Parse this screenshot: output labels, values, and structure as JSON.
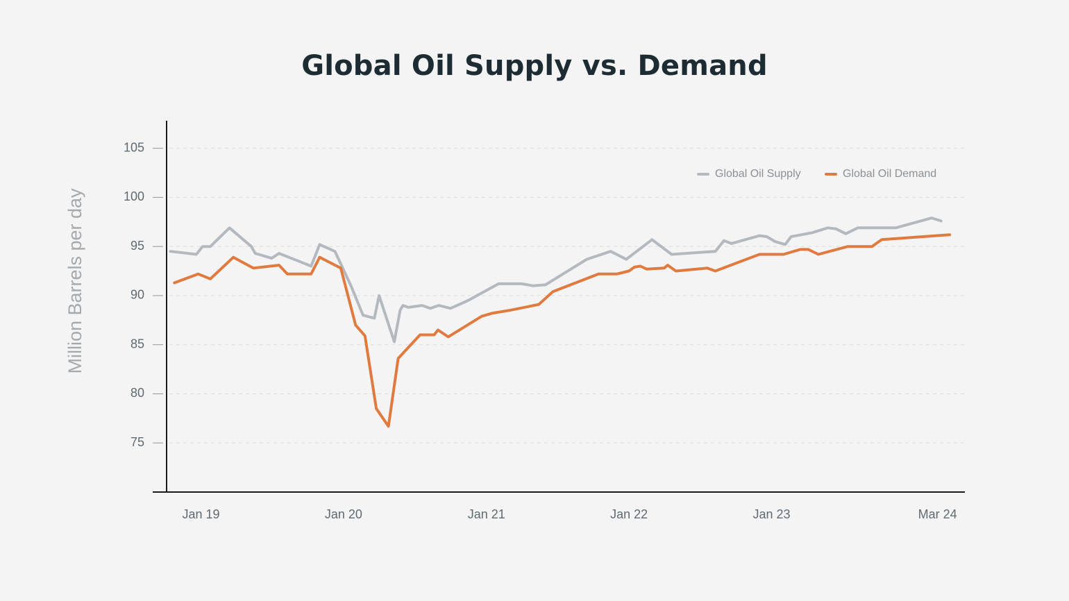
{
  "chart_data": {
    "type": "line",
    "title": "Global Oil Supply vs. Demand",
    "xlabel": "",
    "ylabel": "Million Barrels per day",
    "ylim": [
      70,
      107.8
    ],
    "xlim": [
      "2018-10-05",
      "2024-05-10"
    ],
    "y_ticks": [
      75,
      80,
      85,
      90,
      95,
      100,
      105
    ],
    "x_ticks": [
      {
        "date": "2019-01-01",
        "label": "Jan 19"
      },
      {
        "date": "2020-01-01",
        "label": "Jan 20"
      },
      {
        "date": "2021-01-01",
        "label": "Jan 21"
      },
      {
        "date": "2022-01-01",
        "label": "Jan 22"
      },
      {
        "date": "2023-01-01",
        "label": "Jan 23"
      },
      {
        "date": "2024-03-01",
        "label": "Mar 24"
      }
    ],
    "grid": "horizontal dashed",
    "legend_position": "top-right",
    "colors": {
      "supply": "#b3b9be",
      "demand": "#e07a3e",
      "axis": "#1a1a1a",
      "grid": "#dcdcdc"
    },
    "series": [
      {
        "name": "Global Oil Supply",
        "color": "#b3b9be",
        "points": [
          [
            "2018-10-15",
            94.5
          ],
          [
            "2018-12-20",
            94.2
          ],
          [
            "2019-01-05",
            95.0
          ],
          [
            "2019-01-25",
            95.0
          ],
          [
            "2019-03-15",
            96.9
          ],
          [
            "2019-05-10",
            95.0
          ],
          [
            "2019-05-20",
            94.3
          ],
          [
            "2019-07-01",
            93.8
          ],
          [
            "2019-07-20",
            94.3
          ],
          [
            "2019-09-15",
            93.4
          ],
          [
            "2019-10-10",
            93.0
          ],
          [
            "2019-11-01",
            95.2
          ],
          [
            "2019-12-10",
            94.5
          ],
          [
            "2020-01-20",
            91.0
          ],
          [
            "2020-02-20",
            88.0
          ],
          [
            "2020-03-20",
            87.7
          ],
          [
            "2020-04-01",
            90.0
          ],
          [
            "2020-05-10",
            85.3
          ],
          [
            "2020-05-25",
            88.5
          ],
          [
            "2020-06-01",
            89.0
          ],
          [
            "2020-06-15",
            88.8
          ],
          [
            "2020-07-20",
            89.0
          ],
          [
            "2020-08-10",
            88.7
          ],
          [
            "2020-09-01",
            89.0
          ],
          [
            "2020-10-01",
            88.7
          ],
          [
            "2020-11-15",
            89.5
          ],
          [
            "2021-02-01",
            91.2
          ],
          [
            "2021-04-01",
            91.2
          ],
          [
            "2021-05-01",
            91.0
          ],
          [
            "2021-06-01",
            91.1
          ],
          [
            "2021-09-15",
            93.7
          ],
          [
            "2021-11-15",
            94.5
          ],
          [
            "2021-12-25",
            93.7
          ],
          [
            "2022-03-01",
            95.7
          ],
          [
            "2022-04-20",
            94.2
          ],
          [
            "2022-08-10",
            94.5
          ],
          [
            "2022-09-01",
            95.6
          ],
          [
            "2022-09-20",
            95.3
          ],
          [
            "2022-12-01",
            96.1
          ],
          [
            "2022-12-20",
            96.0
          ],
          [
            "2023-01-10",
            95.5
          ],
          [
            "2023-02-05",
            95.2
          ],
          [
            "2023-02-20",
            96.0
          ],
          [
            "2023-04-15",
            96.4
          ],
          [
            "2023-05-25",
            96.9
          ],
          [
            "2023-06-15",
            96.8
          ],
          [
            "2023-07-10",
            96.3
          ],
          [
            "2023-08-10",
            96.9
          ],
          [
            "2023-11-15",
            96.9
          ],
          [
            "2024-02-15",
            97.9
          ],
          [
            "2024-03-10",
            97.6
          ]
        ]
      },
      {
        "name": "Global Oil Demand",
        "color": "#e07a3e",
        "points": [
          [
            "2018-10-25",
            91.3
          ],
          [
            "2018-12-25",
            92.2
          ],
          [
            "2019-01-25",
            91.7
          ],
          [
            "2019-03-25",
            93.9
          ],
          [
            "2019-05-15",
            92.8
          ],
          [
            "2019-07-20",
            93.1
          ],
          [
            "2019-08-10",
            92.2
          ],
          [
            "2019-10-10",
            92.2
          ],
          [
            "2019-11-01",
            93.9
          ],
          [
            "2019-12-25",
            92.8
          ],
          [
            "2020-02-01",
            87.0
          ],
          [
            "2020-02-25",
            85.9
          ],
          [
            "2020-03-25",
            78.5
          ],
          [
            "2020-04-25",
            76.7
          ],
          [
            "2020-05-20",
            83.6
          ],
          [
            "2020-07-15",
            86.0
          ],
          [
            "2020-08-20",
            86.0
          ],
          [
            "2020-08-30",
            86.5
          ],
          [
            "2020-09-25",
            85.8
          ],
          [
            "2020-12-20",
            87.9
          ],
          [
            "2021-01-15",
            88.2
          ],
          [
            "2021-03-01",
            88.5
          ],
          [
            "2021-05-15",
            89.1
          ],
          [
            "2021-06-20",
            90.4
          ],
          [
            "2021-10-15",
            92.2
          ],
          [
            "2021-12-01",
            92.2
          ],
          [
            "2022-01-01",
            92.5
          ],
          [
            "2022-01-15",
            92.9
          ],
          [
            "2022-01-30",
            93.0
          ],
          [
            "2022-02-15",
            92.7
          ],
          [
            "2022-04-01",
            92.8
          ],
          [
            "2022-04-10",
            93.1
          ],
          [
            "2022-05-01",
            92.5
          ],
          [
            "2022-07-20",
            92.8
          ],
          [
            "2022-08-10",
            92.5
          ],
          [
            "2022-12-01",
            94.2
          ],
          [
            "2023-02-01",
            94.2
          ],
          [
            "2023-03-15",
            94.7
          ],
          [
            "2023-04-05",
            94.7
          ],
          [
            "2023-05-01",
            94.2
          ],
          [
            "2023-07-15",
            95.0
          ],
          [
            "2023-09-15",
            95.0
          ],
          [
            "2023-10-10",
            95.7
          ],
          [
            "2024-04-01",
            96.2
          ]
        ]
      }
    ]
  }
}
